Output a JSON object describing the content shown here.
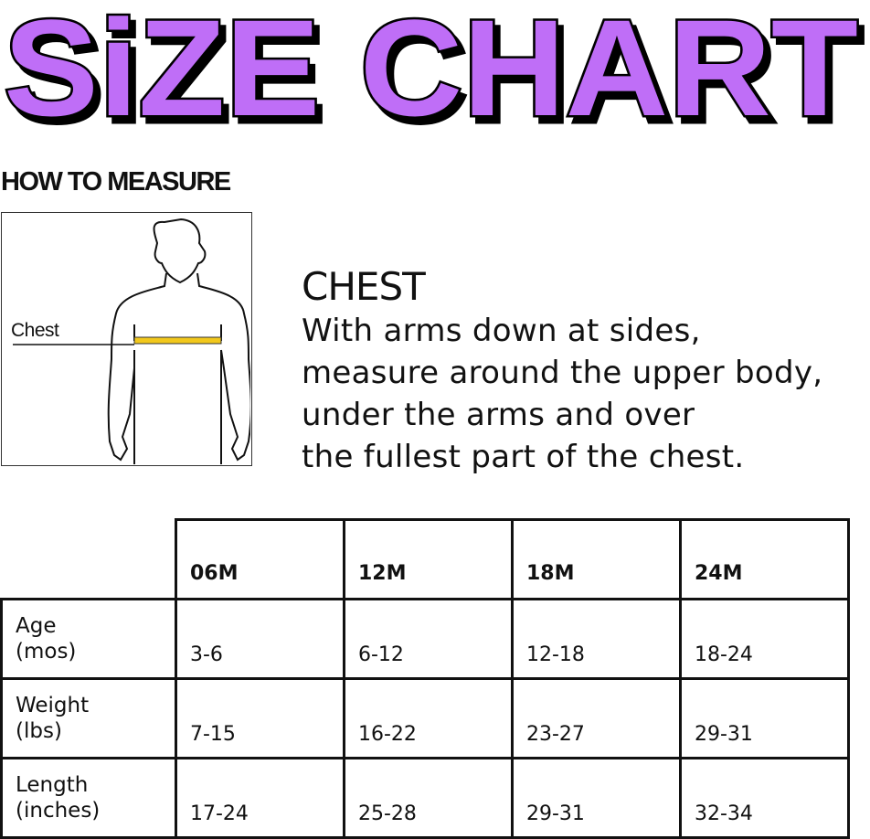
{
  "title": "SiZE CHART",
  "colors": {
    "title_fill": "#BF6EF7",
    "title_outline": "#000000",
    "tape": "#F2C81C"
  },
  "how_to_measure": "HOW TO MEASURE",
  "figure": {
    "label": "Chest"
  },
  "chest": {
    "heading": "CHEST",
    "lines": [
      "With arms down at sides,",
      "measure around the upper body,",
      "under the arms and over",
      "the fullest part of the chest."
    ]
  },
  "table": {
    "columns": [
      "06M",
      "12M",
      "18M",
      "24M"
    ],
    "rows": [
      {
        "label1": "Age",
        "label2": "(mos)",
        "values": [
          "3-6",
          "6-12",
          "12-18",
          "18-24"
        ]
      },
      {
        "label1": "Weight",
        "label2": "(lbs)",
        "values": [
          "7-15",
          "16-22",
          "23-27",
          "29-31"
        ]
      },
      {
        "label1": "Length",
        "label2": "(inches)",
        "values": [
          "17-24",
          "25-28",
          "29-31",
          "32-34"
        ]
      }
    ]
  }
}
